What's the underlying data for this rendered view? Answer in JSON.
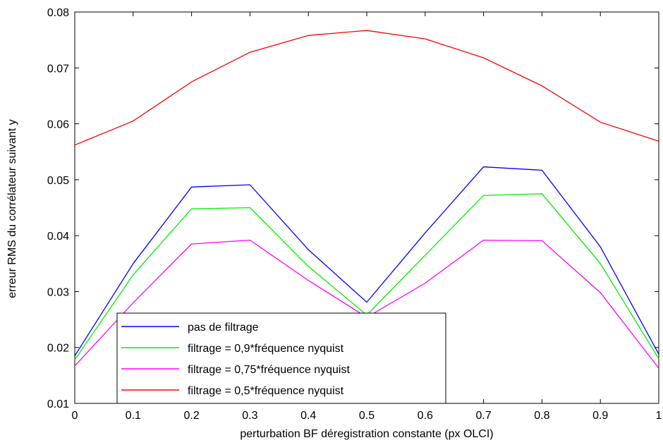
{
  "chart_data": {
    "type": "line",
    "title": "",
    "xlabel": "perturbation BF déregistration constante (px OLCI)",
    "ylabel": "erreur RMS du corrélateur suivant y",
    "xlim": [
      0,
      1
    ],
    "ylim": [
      0.01,
      0.08
    ],
    "x_ticks": [
      "0",
      "0.1",
      "0.2",
      "0.3",
      "0.4",
      "0.5",
      "0.6",
      "0.7",
      "0.8",
      "0.9",
      "1"
    ],
    "y_ticks": [
      "0.01",
      "0.02",
      "0.03",
      "0.04",
      "0.05",
      "0.06",
      "0.07",
      "0.08"
    ],
    "grid": false,
    "legend_position": "bottom-center",
    "x": [
      0,
      0.1,
      0.2,
      0.3,
      0.4,
      0.5,
      0.6,
      0.7,
      0.8,
      0.9,
      1
    ],
    "series": [
      {
        "name": "pas de filtrage",
        "color": "#0000ff",
        "values": [
          0.0185,
          0.035,
          0.0487,
          0.0491,
          0.0375,
          0.0281,
          0.0405,
          0.0523,
          0.0517,
          0.038,
          0.0188
        ]
      },
      {
        "name": "filtrage = 0,9*fréquence nyquist",
        "color": "#00ee00",
        "values": [
          0.0178,
          0.033,
          0.0448,
          0.045,
          0.0345,
          0.0258,
          0.0365,
          0.0472,
          0.0475,
          0.035,
          0.018
        ]
      },
      {
        "name": "filtrage = 0,75*fréquence nyquist",
        "color": "#ff00ff",
        "values": [
          0.0167,
          0.028,
          0.0385,
          0.0392,
          0.032,
          0.0254,
          0.0315,
          0.0392,
          0.0391,
          0.0298,
          0.0163
        ]
      },
      {
        "name": "filtrage = 0,5*fréquence nyquist",
        "color": "#ff0000",
        "values": [
          0.0562,
          0.0605,
          0.0675,
          0.0728,
          0.0758,
          0.0767,
          0.0752,
          0.0718,
          0.0668,
          0.0603,
          0.0569
        ]
      }
    ]
  }
}
